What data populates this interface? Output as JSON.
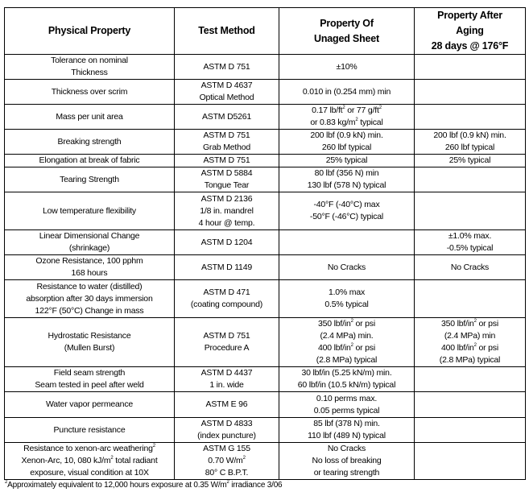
{
  "headers": [
    "Physical Property",
    "Test Method",
    [
      "Property Of",
      "Unaged Sheet"
    ],
    [
      "Property After",
      "Aging",
      "28 days @ 176°F"
    ]
  ],
  "rows": [
    {
      "property": [
        "Tolerance on nominal",
        "Thickness"
      ],
      "method": [
        "ASTM D 751"
      ],
      "unaged": [
        "±10%"
      ],
      "aged": []
    },
    {
      "property": [
        "Thickness over scrim"
      ],
      "method": [
        "ASTM D 4637",
        "Optical Method"
      ],
      "unaged": [
        "0.010 in   (0.254 mm) min"
      ],
      "aged": []
    },
    {
      "property": [
        "Mass per unit area"
      ],
      "method": [
        "ASTM D5261"
      ],
      "unaged": [
        "0.17 lb/ft² or  77 g/ft²",
        "or  0.83 kg/m² typical"
      ],
      "aged": []
    },
    {
      "property": [
        "Breaking strength"
      ],
      "method": [
        "ASTM D 751",
        "Grab Method"
      ],
      "unaged": [
        "200 lbf  (0.9 kN)  min.",
        "260 lbf   typical"
      ],
      "aged": [
        "200 lbf  (0.9 kN)  min.",
        "260 lbf  typical"
      ]
    },
    {
      "property": [
        "Elongation at break of fabric"
      ],
      "method": [
        "ASTM D 751"
      ],
      "unaged": [
        "25% typical"
      ],
      "aged": [
        "25% typical"
      ]
    },
    {
      "property": [
        "Tearing Strength"
      ],
      "method": [
        "ASTM D 5884",
        "Tongue Tear"
      ],
      "unaged": [
        "80 lbf  (356 N)  min",
        "130 lbf  (578 N)  typical"
      ],
      "aged": []
    },
    {
      "property": [
        "Low temperature flexibility"
      ],
      "method": [
        "ASTM D 2136",
        "1/8 in. mandrel",
        "4 hour @ temp."
      ],
      "unaged": [
        "-40°F (-40°C) max",
        "-50°F (-46°C) typical"
      ],
      "aged": []
    },
    {
      "property": [
        "Linear Dimensional Change",
        "(shrinkage)"
      ],
      "method": [
        "ASTM D 1204"
      ],
      "unaged": [],
      "aged": [
        "±1.0% max.",
        "-0.5% typical"
      ]
    },
    {
      "property": [
        "Ozone Resistance, 100 pphm",
        "168 hours"
      ],
      "method": [
        "ASTM D 1149"
      ],
      "unaged": [
        "No Cracks"
      ],
      "aged": [
        "No Cracks"
      ]
    },
    {
      "property": [
        "Resistance to water (distilled)",
        "absorption after 30 days immersion",
        "122°F (50°C) Change in mass"
      ],
      "method": [
        "ASTM D 471",
        "(coating compound)"
      ],
      "unaged": [
        "1.0% max",
        "0.5% typical"
      ],
      "aged": []
    },
    {
      "property": [
        "Hydrostatic Resistance",
        "(Mullen Burst)"
      ],
      "method": [
        "ASTM D 751",
        "Procedure A"
      ],
      "unaged": [
        "350 lbf/in² or psi",
        "(2.4 MPa) min.",
        "400 lbf/in² or psi",
        "(2.8 MPa) typical"
      ],
      "aged": [
        "350 lbf/in² or psi",
        "(2.4 MPa) min",
        "400 lbf/in² or psi",
        "(2.8 MPa) typical"
      ]
    },
    {
      "property": [
        "Field seam strength",
        "Seam tested in peel after weld"
      ],
      "method": [
        "ASTM D 4437",
        "1 in. wide"
      ],
      "unaged": [
        "30 lbf/in (5.25 kN/m) min.",
        "60 lbf/in (10.5 kN/m) typical"
      ],
      "aged": []
    },
    {
      "property": [
        "Water vapor permeance"
      ],
      "method": [
        "ASTM E 96"
      ],
      "unaged": [
        "0.10 perms max.",
        "0.05 perms typical"
      ],
      "aged": []
    },
    {
      "property": [
        "Puncture resistance"
      ],
      "method": [
        "ASTM D 4833",
        "(index puncture)"
      ],
      "unaged": [
        "85 lbf (378 N) min.",
        "110 lbf (489 N) typical"
      ],
      "aged": []
    },
    {
      "property": [
        "Resistance to xenon-arc weathering²",
        "Xenon-Arc, 10, 080 kJ/m² total radiant",
        "exposure, visual condition at 10X"
      ],
      "method": [
        "ASTM G 155",
        "0.70 W/m²",
        "80° C B.P.T."
      ],
      "unaged": [
        "No Cracks",
        "No loss of breaking",
        "or tearing strength"
      ],
      "aged": []
    }
  ],
  "footnote": "²Approximately equivalent to 12,000 hours exposure at 0.35 W/m² irradiance 3/06"
}
